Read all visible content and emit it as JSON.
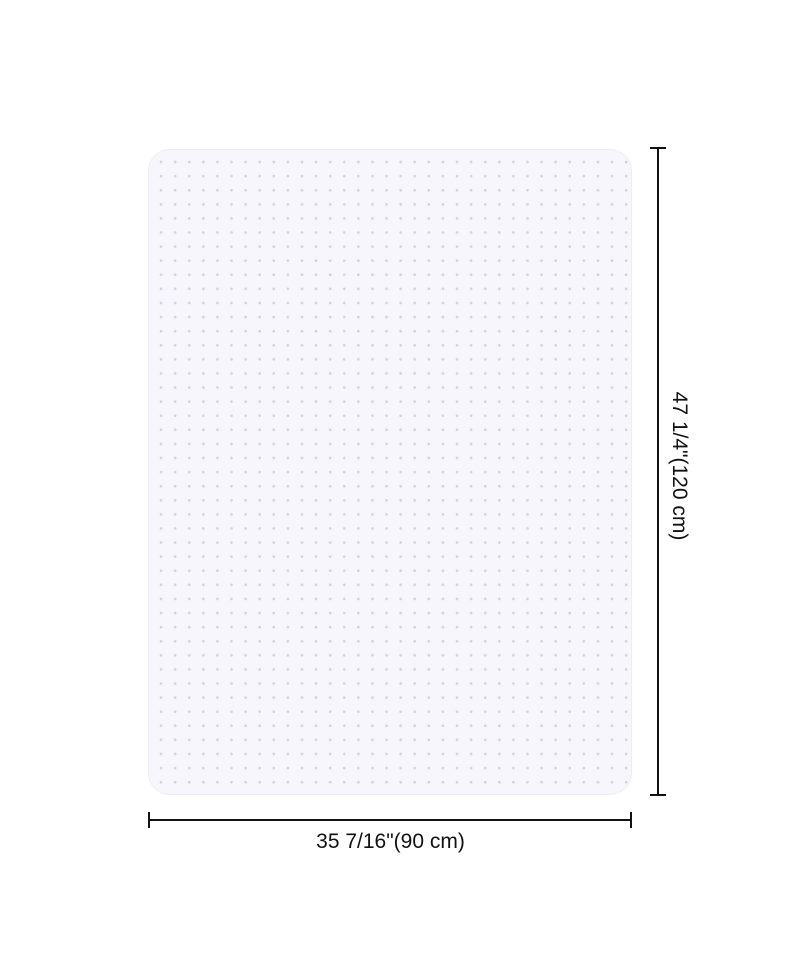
{
  "product": {
    "name_icon": "chair-mat-with-dot-pattern"
  },
  "dimensions": {
    "width_label": "35 7/16\"(90 cm)",
    "height_label": "47 1/4\"(120 cm)"
  }
}
